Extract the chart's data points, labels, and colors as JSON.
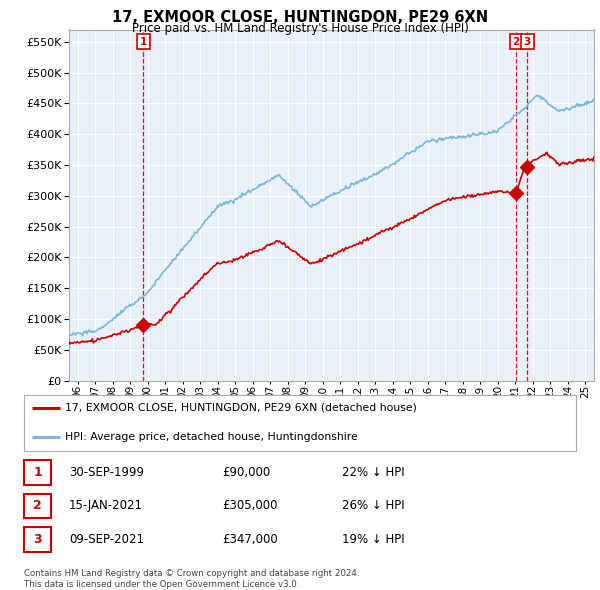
{
  "title": "17, EXMOOR CLOSE, HUNTINGDON, PE29 6XN",
  "subtitle": "Price paid vs. HM Land Registry's House Price Index (HPI)",
  "ylim": [
    0,
    570000
  ],
  "yticks": [
    0,
    50000,
    100000,
    150000,
    200000,
    250000,
    300000,
    350000,
    400000,
    450000,
    500000,
    550000
  ],
  "hpi_color": "#7db8d8",
  "price_color": "#cc0000",
  "chart_bg": "#e8f0f8",
  "background_color": "#ffffff",
  "grid_color": "#ffffff",
  "sale_points": [
    {
      "date_num": 1999.75,
      "price": 90000,
      "label": "1"
    },
    {
      "date_num": 2021.04,
      "price": 305000,
      "label": "2"
    },
    {
      "date_num": 2021.69,
      "price": 347000,
      "label": "3"
    }
  ],
  "legend_entries": [
    {
      "label": "17, EXMOOR CLOSE, HUNTINGDON, PE29 6XN (detached house)",
      "color": "#cc0000"
    },
    {
      "label": "HPI: Average price, detached house, Huntingdonshire",
      "color": "#7db8d8"
    }
  ],
  "table_rows": [
    {
      "num": "1",
      "date": "30-SEP-1999",
      "price": "£90,000",
      "hpi": "22% ↓ HPI"
    },
    {
      "num": "2",
      "date": "15-JAN-2021",
      "price": "£305,000",
      "hpi": "26% ↓ HPI"
    },
    {
      "num": "3",
      "date": "09-SEP-2021",
      "price": "£347,000",
      "hpi": "19% ↓ HPI"
    }
  ],
  "footer": "Contains HM Land Registry data © Crown copyright and database right 2024.\nThis data is licensed under the Open Government Licence v3.0.",
  "xmin": 1995.5,
  "xmax": 2025.5
}
